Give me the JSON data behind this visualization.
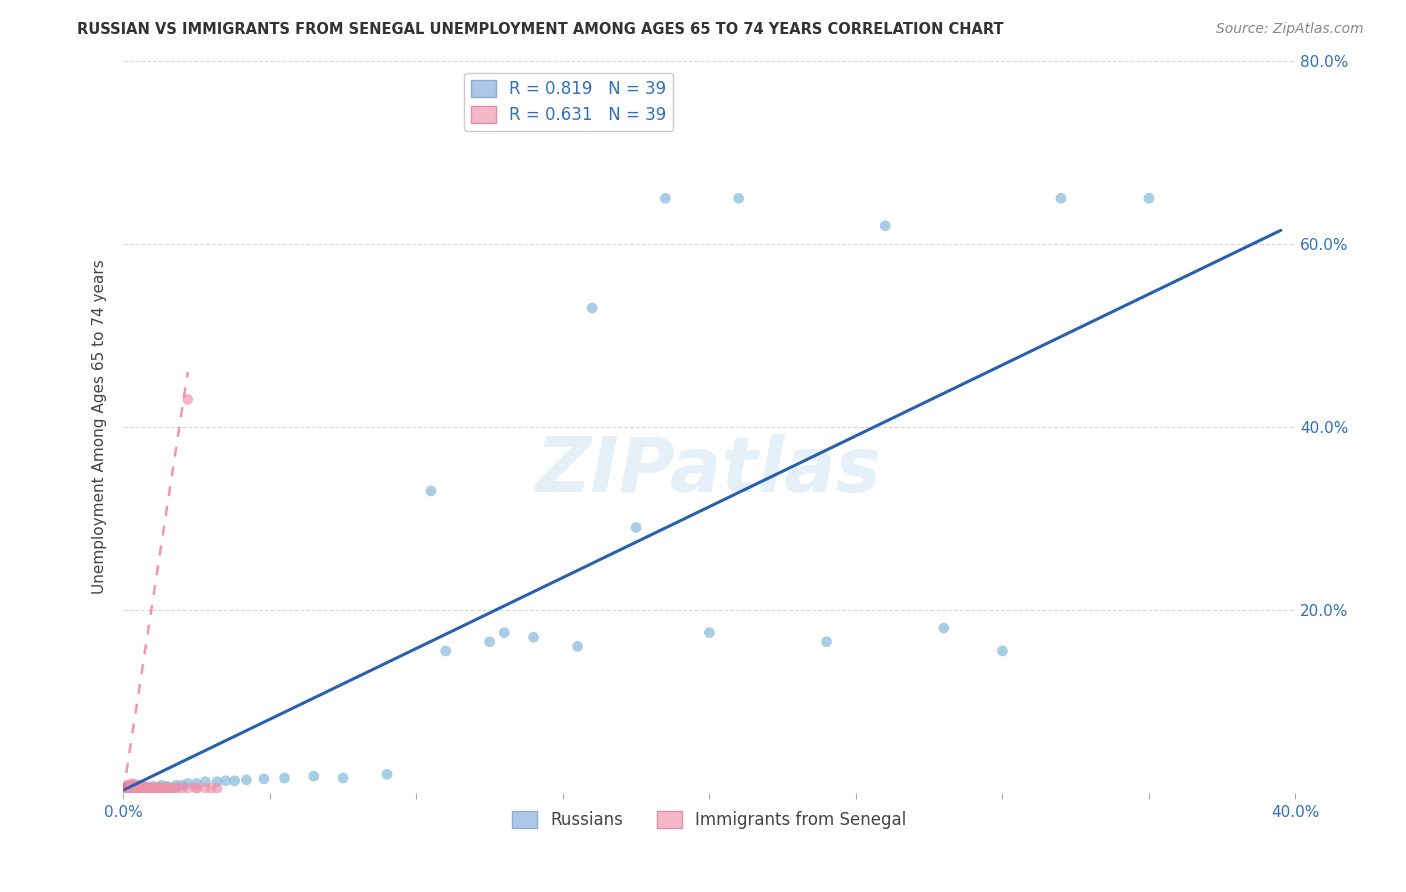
{
  "title": "RUSSIAN VS IMMIGRANTS FROM SENEGAL UNEMPLOYMENT AMONG AGES 65 TO 74 YEARS CORRELATION CHART",
  "source": "Source: ZipAtlas.com",
  "ylabel": "Unemployment Among Ages 65 to 74 years",
  "xlim": [
    0.0,
    0.4
  ],
  "ylim": [
    0.0,
    0.8
  ],
  "xticks": [
    0.0,
    0.05,
    0.1,
    0.15,
    0.2,
    0.25,
    0.3,
    0.35,
    0.4
  ],
  "yticks": [
    0.0,
    0.2,
    0.4,
    0.6,
    0.8
  ],
  "ytick_labels": [
    "",
    "20.0%",
    "40.0%",
    "60.0%",
    "80.0%"
  ],
  "xtick_labels": [
    "0.0%",
    "",
    "",
    "",
    "",
    "",
    "",
    "",
    "40.0%"
  ],
  "watermark": "ZIPatlas",
  "russians_x": [
    0.001,
    0.002,
    0.002,
    0.003,
    0.003,
    0.004,
    0.004,
    0.005,
    0.005,
    0.006,
    0.006,
    0.007,
    0.008,
    0.009,
    0.01,
    0.011,
    0.012,
    0.013,
    0.014,
    0.015,
    0.016,
    0.018,
    0.02,
    0.022,
    0.025,
    0.028,
    0.032,
    0.035,
    0.038,
    0.042,
    0.048,
    0.055,
    0.065,
    0.075,
    0.09,
    0.11,
    0.13,
    0.155,
    0.175,
    0.2,
    0.24,
    0.28,
    0.3,
    0.105,
    0.125,
    0.14,
    0.16,
    0.185,
    0.21,
    0.26,
    0.32,
    0.35
  ],
  "russians_y": [
    0.005,
    0.005,
    0.008,
    0.005,
    0.007,
    0.005,
    0.006,
    0.005,
    0.008,
    0.005,
    0.007,
    0.005,
    0.006,
    0.005,
    0.007,
    0.005,
    0.006,
    0.008,
    0.005,
    0.007,
    0.005,
    0.008,
    0.008,
    0.01,
    0.01,
    0.012,
    0.012,
    0.013,
    0.013,
    0.014,
    0.015,
    0.016,
    0.018,
    0.016,
    0.02,
    0.155,
    0.175,
    0.16,
    0.29,
    0.175,
    0.165,
    0.18,
    0.155,
    0.33,
    0.165,
    0.17,
    0.53,
    0.65,
    0.65,
    0.62,
    0.65,
    0.65
  ],
  "senegal_x": [
    0.001,
    0.001,
    0.002,
    0.002,
    0.003,
    0.003,
    0.003,
    0.004,
    0.004,
    0.004,
    0.005,
    0.005,
    0.006,
    0.006,
    0.007,
    0.007,
    0.008,
    0.009,
    0.01,
    0.011,
    0.012,
    0.013,
    0.015,
    0.017,
    0.02,
    0.025,
    0.03,
    0.025,
    0.018,
    0.015,
    0.012,
    0.01,
    0.008,
    0.022,
    0.028,
    0.032,
    0.022,
    0.018,
    0.014
  ],
  "senegal_y": [
    0.005,
    0.008,
    0.005,
    0.007,
    0.005,
    0.008,
    0.01,
    0.005,
    0.006,
    0.009,
    0.005,
    0.007,
    0.005,
    0.006,
    0.005,
    0.007,
    0.005,
    0.006,
    0.005,
    0.005,
    0.005,
    0.005,
    0.005,
    0.005,
    0.005,
    0.005,
    0.005,
    0.005,
    0.005,
    0.005,
    0.005,
    0.005,
    0.005,
    0.005,
    0.005,
    0.005,
    0.43,
    0.005,
    0.005
  ],
  "blue_line_x": [
    -0.005,
    0.395
  ],
  "blue_line_y": [
    -0.005,
    0.615
  ],
  "pink_line_x": [
    0.0,
    0.022
  ],
  "pink_line_y": [
    0.0,
    0.46
  ],
  "scatter_color_russian": "#7ab4d8",
  "scatter_color_senegal": "#f090aa",
  "scatter_alpha": 0.65,
  "scatter_size": 60,
  "blue_line_color": "#2860b0",
  "pink_line_color": "#e8507a",
  "title_color": "#333333",
  "axis_color": "#3070b8",
  "grid_color": "#cccccc",
  "background_color": "#ffffff",
  "legend_blue_color": "#aec6e8",
  "legend_pink_color": "#f4b8c8"
}
